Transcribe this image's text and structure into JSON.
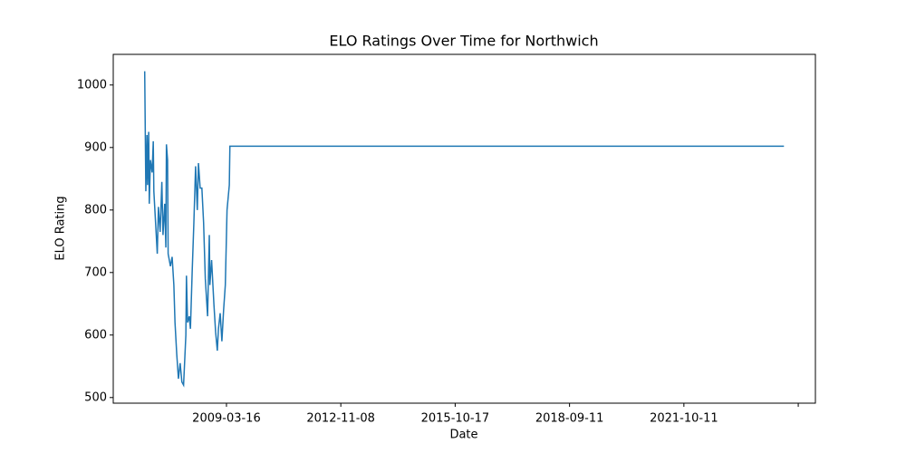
{
  "chart_data": {
    "type": "line",
    "title": "ELO Ratings Over Time for Northwich",
    "x_label": "Date",
    "y_label": "ELO Rating",
    "x": [
      57,
      59,
      61,
      62,
      64,
      65,
      67,
      70,
      72,
      73,
      76,
      79,
      81,
      84,
      87,
      89,
      92,
      94,
      95,
      97,
      98,
      102,
      105,
      108,
      110,
      113,
      116,
      119,
      122,
      125,
      129,
      130,
      132,
      135,
      137,
      140,
      143,
      146,
      149,
      151,
      154,
      157,
      160,
      163,
      167,
      170,
      171,
      174,
      178,
      181,
      184,
      186,
      189,
      192,
      195,
      198,
      201,
      205,
      206,
      1175
    ],
    "series": [
      {
        "name": "ELO",
        "color": "#1f77b4",
        "values": [
          1022,
          830,
          920,
          840,
          925,
          810,
          880,
          860,
          910,
          830,
          780,
          730,
          805,
          765,
          845,
          760,
          810,
          740,
          905,
          880,
          730,
          710,
          725,
          680,
          620,
          570,
          530,
          555,
          525,
          520,
          600,
          695,
          620,
          630,
          610,
          700,
          780,
          870,
          800,
          875,
          835,
          835,
          780,
          690,
          630,
          760,
          680,
          720,
          650,
          605,
          575,
          610,
          635,
          590,
          640,
          680,
          800,
          840,
          902,
          902
        ]
      }
    ],
    "xlim": [
      2,
      1230
    ],
    "ylim": [
      491,
      1049
    ],
    "xticks": [
      {
        "value": 200,
        "label": "2009-03-16"
      },
      {
        "value": 400,
        "label": "2012-11-08"
      },
      {
        "value": 600,
        "label": "2015-10-17"
      },
      {
        "value": 800,
        "label": "2018-09-11"
      },
      {
        "value": 1000,
        "label": "2021-10-11"
      },
      {
        "value": 1200,
        "label": null
      }
    ],
    "yticks": [
      500,
      600,
      700,
      800,
      900,
      1000
    ]
  }
}
